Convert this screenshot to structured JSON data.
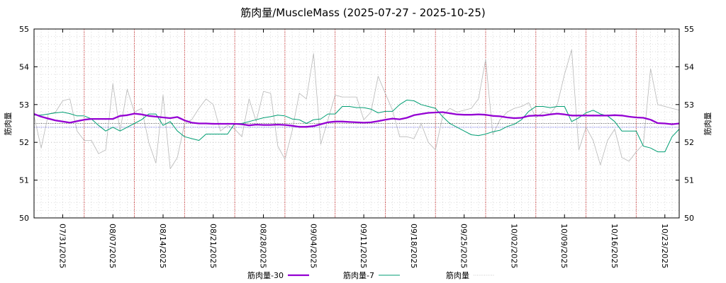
{
  "chart_data": {
    "type": "line",
    "title": "筋肉量/MuscleMass (2025-07-27 - 2025-10-25)",
    "ylabel_left": "筋肉量",
    "ylabel_right": "筋肉量",
    "ylim": [
      50,
      55
    ],
    "yticks": [
      50,
      51,
      52,
      53,
      54,
      55
    ],
    "xlim": [
      0,
      90
    ],
    "xticks": [
      {
        "x": 4,
        "label": "07/31/2025"
      },
      {
        "x": 11,
        "label": "08/07/2025"
      },
      {
        "x": 18,
        "label": "08/14/2025"
      },
      {
        "x": 25,
        "label": "08/21/2025"
      },
      {
        "x": 32,
        "label": "08/28/2025"
      },
      {
        "x": 39,
        "label": "09/04/2025"
      },
      {
        "x": 46,
        "label": "09/11/2025"
      },
      {
        "x": 53,
        "label": "09/18/2025"
      },
      {
        "x": 60,
        "label": "09/25/2025"
      },
      {
        "x": 67,
        "label": "10/02/2025"
      },
      {
        "x": 74,
        "label": "10/09/2025"
      },
      {
        "x": 81,
        "label": "10/16/2025"
      },
      {
        "x": 88,
        "label": "10/23/2025"
      }
    ],
    "week_markers": [
      7,
      14,
      21,
      28,
      35,
      42,
      49,
      56,
      63,
      70,
      77,
      84
    ],
    "reference_lines": [
      52.5,
      52.4
    ],
    "legend_position": "bottom",
    "series": [
      {
        "name": "筋肉量-30",
        "color": "#9400d3",
        "style": "thick",
        "x": [
          0,
          1,
          2,
          3,
          4,
          5,
          6,
          7,
          8,
          9,
          10,
          11,
          12,
          13,
          14,
          15,
          16,
          17,
          18,
          19,
          20,
          21,
          22,
          23,
          24,
          25,
          26,
          27,
          28,
          29,
          30,
          31,
          32,
          33,
          34,
          35,
          36,
          37,
          38,
          39,
          40,
          41,
          42,
          43,
          44,
          45,
          46,
          47,
          48,
          49,
          50,
          51,
          52,
          53,
          54,
          55,
          56,
          57,
          58,
          59,
          60,
          61,
          62,
          63,
          64,
          65,
          66,
          67,
          68,
          69,
          70,
          71,
          72,
          73,
          74,
          75,
          76,
          77,
          78,
          79,
          80,
          81,
          82,
          83,
          84,
          85,
          86,
          87,
          88,
          89,
          90
        ],
        "values": [
          52.75,
          52.68,
          52.63,
          52.58,
          52.55,
          52.52,
          52.56,
          52.6,
          52.62,
          52.62,
          52.62,
          52.62,
          52.7,
          52.72,
          52.76,
          52.74,
          52.7,
          52.68,
          52.66,
          52.64,
          52.67,
          52.58,
          52.52,
          52.5,
          52.5,
          52.49,
          52.49,
          52.49,
          52.49,
          52.48,
          52.45,
          52.47,
          52.46,
          52.46,
          52.47,
          52.46,
          52.44,
          52.41,
          52.41,
          52.43,
          52.48,
          52.53,
          52.55,
          52.55,
          52.54,
          52.53,
          52.52,
          52.53,
          52.56,
          52.6,
          52.63,
          52.61,
          52.65,
          52.72,
          52.75,
          52.78,
          52.79,
          52.8,
          52.77,
          52.74,
          52.73,
          52.73,
          52.74,
          52.73,
          52.7,
          52.69,
          52.66,
          52.64,
          52.65,
          52.7,
          52.71,
          52.71,
          52.74,
          52.76,
          52.74,
          52.71,
          52.71,
          52.71,
          52.71,
          52.71,
          52.71,
          52.72,
          52.71,
          52.68,
          52.66,
          52.65,
          52.6,
          52.51,
          52.5,
          52.48,
          52.5
        ]
      },
      {
        "name": "筋肉量-7",
        "color": "#009e73",
        "style": "thin",
        "x": [
          0,
          1,
          2,
          3,
          4,
          5,
          6,
          7,
          8,
          9,
          10,
          11,
          12,
          13,
          14,
          15,
          16,
          17,
          18,
          19,
          20,
          21,
          22,
          23,
          24,
          25,
          26,
          27,
          28,
          29,
          30,
          31,
          32,
          33,
          34,
          35,
          36,
          37,
          38,
          39,
          40,
          41,
          42,
          43,
          44,
          45,
          46,
          47,
          48,
          49,
          50,
          51,
          52,
          53,
          54,
          55,
          56,
          57,
          58,
          59,
          60,
          61,
          62,
          63,
          64,
          65,
          66,
          67,
          68,
          69,
          70,
          71,
          72,
          73,
          74,
          75,
          76,
          77,
          78,
          79,
          80,
          81,
          82,
          83,
          84,
          85,
          86,
          87,
          88,
          89,
          90
        ],
        "values": [
          52.72,
          52.72,
          52.75,
          52.78,
          52.8,
          52.76,
          52.7,
          52.7,
          52.62,
          52.45,
          52.3,
          52.4,
          52.3,
          52.4,
          52.5,
          52.6,
          52.75,
          52.75,
          52.45,
          52.55,
          52.3,
          52.15,
          52.1,
          52.05,
          52.22,
          52.22,
          52.22,
          52.22,
          52.5,
          52.5,
          52.55,
          52.6,
          52.65,
          52.68,
          52.72,
          52.7,
          52.62,
          52.6,
          52.5,
          52.6,
          52.62,
          52.75,
          52.75,
          52.95,
          52.95,
          52.92,
          52.92,
          52.88,
          52.78,
          52.82,
          52.82,
          53.0,
          53.12,
          53.1,
          53.0,
          52.95,
          52.9,
          52.68,
          52.5,
          52.4,
          52.3,
          52.2,
          52.18,
          52.22,
          52.28,
          52.32,
          52.42,
          52.48,
          52.6,
          52.82,
          52.95,
          52.95,
          52.92,
          52.95,
          52.95,
          52.55,
          52.65,
          52.78,
          52.85,
          52.75,
          52.7,
          52.55,
          52.3,
          52.3,
          52.3,
          51.9,
          51.85,
          51.75,
          51.75,
          52.15,
          52.35
        ]
      },
      {
        "name": "筋肉量",
        "color": "#b8b8b8",
        "style": "faint",
        "x": [
          0,
          1,
          2,
          3,
          4,
          5,
          6,
          7,
          8,
          9,
          10,
          11,
          12,
          13,
          14,
          15,
          16,
          17,
          18,
          19,
          20,
          21,
          22,
          23,
          24,
          25,
          26,
          27,
          28,
          29,
          30,
          31,
          32,
          33,
          34,
          35,
          36,
          37,
          38,
          39,
          40,
          41,
          42,
          43,
          44,
          45,
          46,
          47,
          48,
          49,
          50,
          51,
          52,
          53,
          54,
          55,
          56,
          57,
          58,
          59,
          60,
          61,
          62,
          63,
          64,
          65,
          66,
          67,
          68,
          69,
          70,
          71,
          72,
          73,
          74,
          75,
          76,
          77,
          78,
          79,
          80,
          81,
          82,
          83,
          84,
          85,
          86,
          87,
          88,
          89,
          90
        ],
        "values": [
          52.7,
          51.85,
          52.75,
          52.8,
          53.1,
          53.15,
          52.3,
          52.05,
          52.05,
          51.7,
          51.8,
          53.55,
          52.3,
          53.4,
          52.8,
          52.9,
          52.0,
          51.45,
          53.25,
          51.3,
          51.6,
          52.5,
          52.6,
          52.9,
          53.15,
          53.0,
          52.3,
          52.45,
          52.35,
          52.15,
          53.15,
          52.55,
          53.35,
          53.3,
          51.9,
          51.55,
          52.3,
          53.3,
          53.15,
          54.35,
          51.95,
          52.6,
          53.25,
          53.2,
          53.2,
          53.2,
          52.6,
          52.8,
          53.75,
          53.3,
          52.85,
          52.15,
          52.15,
          52.1,
          52.5,
          52.0,
          51.8,
          52.7,
          52.9,
          52.8,
          52.85,
          52.9,
          53.15,
          54.2,
          52.2,
          52.6,
          52.8,
          52.9,
          52.95,
          53.05,
          52.65,
          52.8,
          52.75,
          53.0,
          53.8,
          54.45,
          51.8,
          52.4,
          52.05,
          51.4,
          52.05,
          52.35,
          51.6,
          51.5,
          51.75,
          51.95,
          53.95,
          53.0,
          52.95,
          52.9,
          52.85
        ]
      }
    ]
  }
}
